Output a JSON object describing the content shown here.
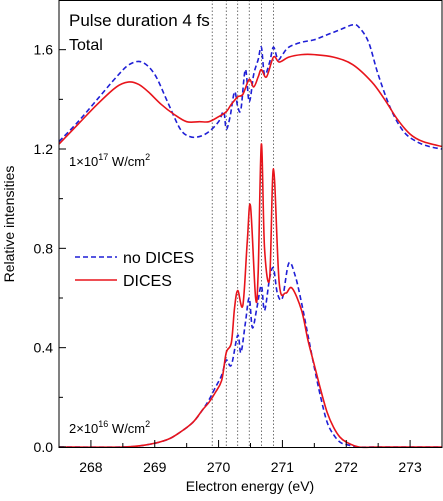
{
  "chart_data": {
    "type": "line",
    "title": "Pulse duration 4 fs",
    "subtitle": "Total",
    "xlabel": "Electron energy (eV)",
    "ylabel": "Relative intensities",
    "xlim": [
      267.5,
      273.5
    ],
    "ylim": [
      0.0,
      1.8
    ],
    "x_ticks": [
      268,
      269,
      270,
      271,
      272,
      273
    ],
    "x_tick_labels": [
      "268",
      "269",
      "270",
      "271",
      "272",
      "273"
    ],
    "y_ticks": [
      0.0,
      0.4,
      0.8,
      1.2,
      1.6
    ],
    "y_tick_labels": [
      "0.0",
      "0.4",
      "0.8",
      "1.2",
      "1.6"
    ],
    "grid": false,
    "legend_position": "left-middle",
    "legend": [
      {
        "label": "no DICES",
        "color": "#1f1fd6",
        "style": "dashed"
      },
      {
        "label": "DICES",
        "color": "#e8141b",
        "style": "solid"
      }
    ],
    "annotations": [
      {
        "base": "1×10",
        "exp": "17",
        "unit": " W/cm",
        "unit_exp": "2"
      },
      {
        "base": "2×10",
        "exp": "16",
        "unit": " W/cm",
        "unit_exp": "2"
      }
    ],
    "vertical_lines_x": [
      269.9,
      270.12,
      270.3,
      270.48,
      270.67,
      270.86
    ],
    "series": [
      {
        "name": "no DICES",
        "panel": "1×10^17 W/cm^2",
        "color": "#1f1fd6",
        "style": "dashed",
        "x": [
          267.5,
          267.8,
          268.1,
          268.4,
          268.6,
          268.8,
          269.0,
          269.2,
          269.4,
          269.55,
          269.7,
          269.85,
          270.0,
          270.08,
          270.12,
          270.18,
          270.25,
          270.3,
          270.35,
          270.42,
          270.48,
          270.55,
          270.62,
          270.67,
          270.72,
          270.8,
          270.86,
          270.93,
          271.0,
          271.1,
          271.3,
          271.5,
          271.7,
          271.9,
          272.1,
          272.2,
          272.35,
          272.5,
          272.7,
          272.9,
          273.1,
          273.3,
          273.5
        ],
        "y": [
          1.23,
          1.31,
          1.4,
          1.49,
          1.54,
          1.55,
          1.5,
          1.39,
          1.28,
          1.25,
          1.25,
          1.27,
          1.31,
          1.35,
          1.28,
          1.33,
          1.43,
          1.37,
          1.36,
          1.52,
          1.39,
          1.5,
          1.56,
          1.61,
          1.5,
          1.55,
          1.61,
          1.56,
          1.58,
          1.61,
          1.63,
          1.64,
          1.66,
          1.68,
          1.7,
          1.69,
          1.63,
          1.5,
          1.36,
          1.27,
          1.23,
          1.21,
          1.2
        ]
      },
      {
        "name": "DICES",
        "panel": "1×10^17 W/cm^2",
        "color": "#e8141b",
        "style": "solid",
        "x": [
          267.5,
          267.8,
          268.1,
          268.4,
          268.6,
          268.75,
          268.9,
          269.1,
          269.3,
          269.5,
          269.7,
          269.85,
          270.0,
          270.12,
          270.2,
          270.3,
          270.38,
          270.48,
          270.55,
          270.62,
          270.67,
          270.75,
          270.86,
          270.95,
          271.1,
          271.3,
          271.5,
          271.8,
          272.1,
          272.4,
          272.6,
          272.8,
          273.0,
          273.2,
          273.5
        ],
        "y": [
          1.22,
          1.3,
          1.38,
          1.45,
          1.47,
          1.46,
          1.43,
          1.38,
          1.34,
          1.31,
          1.31,
          1.31,
          1.33,
          1.35,
          1.38,
          1.41,
          1.42,
          1.48,
          1.45,
          1.49,
          1.52,
          1.49,
          1.57,
          1.55,
          1.57,
          1.58,
          1.58,
          1.57,
          1.54,
          1.47,
          1.4,
          1.32,
          1.26,
          1.23,
          1.21
        ]
      },
      {
        "name": "no DICES",
        "panel": "2×10^16 W/cm^2",
        "color": "#1f1fd6",
        "style": "dashed",
        "x": [
          267.5,
          268.5,
          268.9,
          269.2,
          269.4,
          269.6,
          269.75,
          269.85,
          269.95,
          270.05,
          270.12,
          270.2,
          270.3,
          270.35,
          270.42,
          270.48,
          270.53,
          270.6,
          270.67,
          270.72,
          270.8,
          270.86,
          270.92,
          271.0,
          271.1,
          271.2,
          271.3,
          271.4,
          271.5,
          271.6,
          271.7,
          271.8,
          271.9,
          272.0,
          272.2,
          272.5,
          273.5
        ],
        "y": [
          0.0,
          0.0,
          0.01,
          0.03,
          0.06,
          0.1,
          0.15,
          0.19,
          0.24,
          0.29,
          0.35,
          0.33,
          0.45,
          0.38,
          0.5,
          0.6,
          0.48,
          0.56,
          0.65,
          0.55,
          0.68,
          0.72,
          0.62,
          0.6,
          0.74,
          0.69,
          0.58,
          0.45,
          0.32,
          0.2,
          0.1,
          0.05,
          0.02,
          0.01,
          0.0,
          0.0,
          0.0
        ]
      },
      {
        "name": "DICES",
        "panel": "2×10^16 W/cm^2",
        "color": "#e8141b",
        "style": "solid",
        "x": [
          267.5,
          268.5,
          268.9,
          269.2,
          269.4,
          269.6,
          269.75,
          269.85,
          269.95,
          270.05,
          270.12,
          270.2,
          270.25,
          270.3,
          270.38,
          270.45,
          270.5,
          270.58,
          270.62,
          270.67,
          270.72,
          270.8,
          270.86,
          270.95,
          271.05,
          271.15,
          271.3,
          271.4,
          271.5,
          271.6,
          271.7,
          271.8,
          271.9,
          272.0,
          272.2,
          272.5,
          273.5
        ],
        "y": [
          0.0,
          0.0,
          0.01,
          0.03,
          0.06,
          0.1,
          0.15,
          0.18,
          0.22,
          0.27,
          0.38,
          0.42,
          0.56,
          0.63,
          0.57,
          0.83,
          0.97,
          0.6,
          0.7,
          1.22,
          0.8,
          0.68,
          1.12,
          0.66,
          0.62,
          0.64,
          0.55,
          0.43,
          0.33,
          0.23,
          0.14,
          0.08,
          0.04,
          0.02,
          0.0,
          0.0,
          0.0
        ]
      }
    ]
  }
}
